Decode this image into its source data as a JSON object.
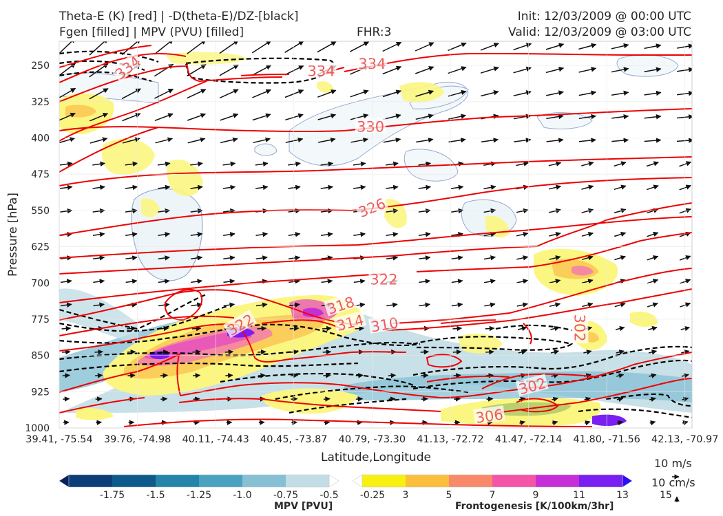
{
  "header": {
    "title_left_1": "Theta-E (K) [red] | -D(theta-E)/DZ-[black]",
    "title_left_2": "Fgen [filled] | MPV (PVU) [filled]",
    "title_center": "FHR:3",
    "title_right_1": "Init: 12/03/2009 @ 00:00 UTC",
    "title_right_2": "Valid: 12/03/2009 @ 03:00 UTC"
  },
  "chart_data": {
    "type": "heatmap",
    "xlabel": "Latitude,Longitude",
    "ylabel": "Pressure [hPa]",
    "ylim": [
      1000,
      200
    ],
    "x_ticks": [
      "39.41, -75.54",
      "39.76, -74.98",
      "40.11, -74.43",
      "40.45, -73.87",
      "40.79, -73.30",
      "41.13, -72.72",
      "41.47, -72.14",
      "41.80, -71.56",
      "42.13, -70.97"
    ],
    "y_ticks": [
      250,
      325,
      400,
      475,
      550,
      625,
      700,
      775,
      850,
      925,
      1000
    ],
    "grid": true,
    "theta_e_contour_labels": [
      {
        "value": "334",
        "x_index": 0.88,
        "p": 255
      },
      {
        "value": "334",
        "x_index": 3.35,
        "p": 262
      },
      {
        "value": "334",
        "x_index": 4.0,
        "p": 247
      },
      {
        "value": "330",
        "x_index": 3.98,
        "p": 377
      },
      {
        "value": "326",
        "x_index": 4.0,
        "p": 545
      },
      {
        "value": "322",
        "x_index": 4.15,
        "p": 693
      },
      {
        "value": "318",
        "x_index": 3.6,
        "p": 747
      },
      {
        "value": "314",
        "x_index": 3.72,
        "p": 783
      },
      {
        "value": "310",
        "x_index": 4.16,
        "p": 787
      },
      {
        "value": "322",
        "x_index": 2.32,
        "p": 787
      },
      {
        "value": "302",
        "x_index": 6.05,
        "p": 914
      },
      {
        "value": "306",
        "x_index": 5.5,
        "p": 976
      },
      {
        "value": "302",
        "x_index": 6.65,
        "p": 793
      }
    ],
    "mpv_colorbar": {
      "label": "MPV [PVU]",
      "ticks": [
        "-1.75",
        "-1.5",
        "-1.25",
        "-1.0",
        "-0.75",
        "-0.5",
        "-0.25"
      ],
      "colors": [
        "#08205e",
        "#0c3d78",
        "#0f5a8c",
        "#2485a8",
        "#48a2c0",
        "#86c0d4",
        "#c2dde6",
        "#ffffff"
      ]
    },
    "fgen_colorbar": {
      "label": "Frontogenesis [K/100km/3hr]",
      "ticks": [
        "3",
        "5",
        "7",
        "9",
        "11",
        "13",
        "15"
      ],
      "colors": [
        "#ffffff",
        "#f8f010",
        "#fbbf3b",
        "#f88a6a",
        "#f455a6",
        "#c62fd6",
        "#7a1ff1",
        "#2a10f5"
      ]
    },
    "vector_key": {
      "wind": "10 m/s",
      "vertical": "10 cm/s"
    }
  }
}
